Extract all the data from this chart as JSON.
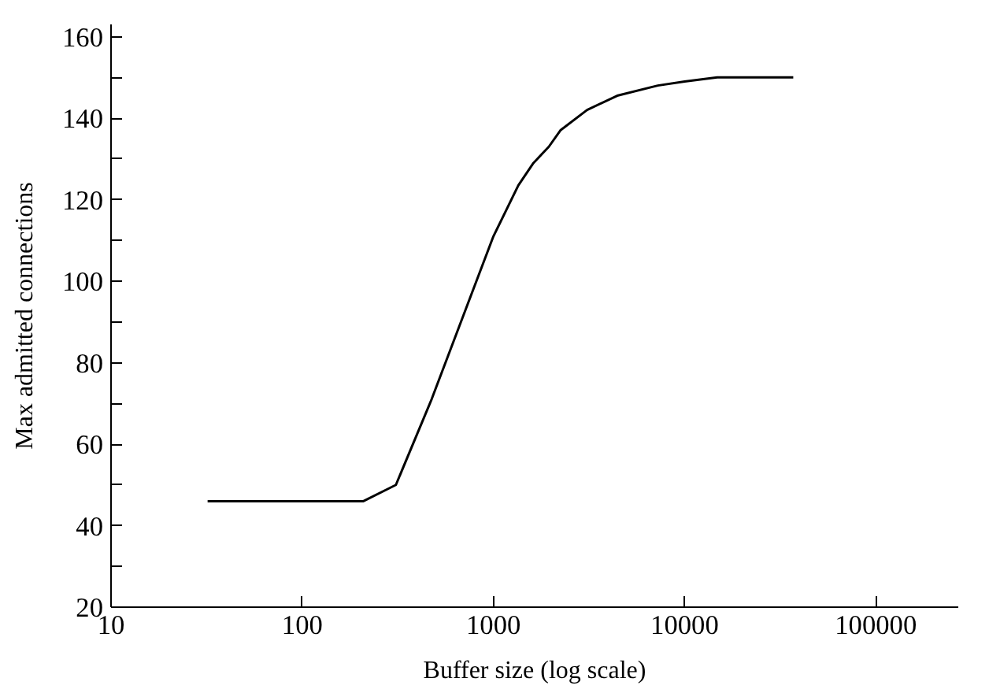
{
  "chart_data": {
    "type": "line",
    "xlabel": "Buffer size (log scale)",
    "ylabel": "Max admitted connections",
    "log": "x",
    "x": [
      32,
      209,
      309,
      475,
      1000,
      1350,
      1620,
      1950,
      2240,
      3090,
      4440,
      7240,
      10000,
      14800,
      37000
    ],
    "series": [
      {
        "color": "#000000",
        "values": [
          46,
          46,
          50,
          71,
          111,
          123.5,
          129,
          133,
          137,
          142,
          145.5,
          148,
          149,
          150,
          150
        ]
      }
    ],
    "xlim": [
      10,
      270000
    ],
    "xticks": [
      10,
      100,
      1000,
      10000,
      100000
    ],
    "ylim": [
      20,
      163
    ],
    "yticks": [
      20,
      {
        "value": 30,
        "label": null
      },
      40,
      {
        "value": 50,
        "label": null
      },
      60,
      {
        "value": 70,
        "label": null
      },
      80,
      {
        "value": 90,
        "label": null
      },
      100,
      {
        "value": 110,
        "label": null
      },
      120,
      {
        "value": 130,
        "label": null
      },
      140,
      {
        "value": 150,
        "label": null
      },
      160
    ],
    "grid": false,
    "marker": "none",
    "line_style": "solid"
  }
}
